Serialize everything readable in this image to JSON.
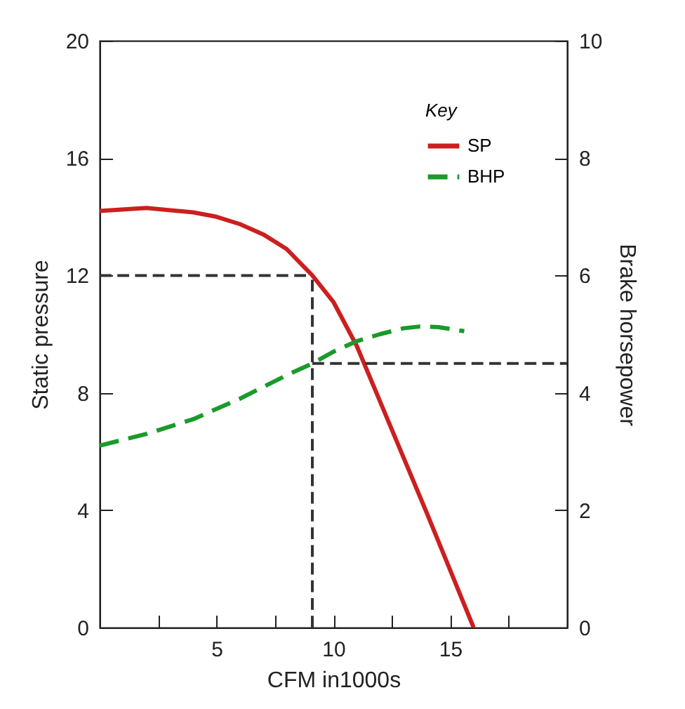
{
  "chart_data": {
    "type": "line",
    "xlabel": "CFM in1000s",
    "ylabel": "Static pressure",
    "y2label": "Brake horsepower",
    "legend_title": "Key",
    "legend": "top right",
    "xlim": [
      0,
      20
    ],
    "xticks": [
      {
        "value": 2.5,
        "label": null
      },
      5,
      {
        "value": 7.5,
        "label": null
      },
      10,
      {
        "value": 12.5,
        "label": null
      },
      15,
      {
        "value": 17.5,
        "label": null
      }
    ],
    "ylim": [
      0,
      20
    ],
    "yticks": [
      0,
      4,
      8,
      12,
      16,
      20
    ],
    "y2lim": [
      0,
      10
    ],
    "y2ticks": [
      0,
      2,
      4,
      6,
      8,
      10
    ],
    "series": [
      {
        "name": "SP",
        "color": "#cc1f1f",
        "line_style": "solid",
        "x": [
          0,
          2,
          4,
          5,
          6,
          7,
          8,
          9.1,
          10,
          11,
          12,
          13,
          14,
          15,
          16
        ],
        "values": [
          14.2,
          14.3,
          14.15,
          14.0,
          13.75,
          13.4,
          12.9,
          12,
          11.1,
          9.6,
          7.7,
          5.8,
          3.9,
          1.95,
          0
        ]
      },
      {
        "name": "BHP",
        "color": "#1a9a2a",
        "line_style": "dashed",
        "axis": "y2",
        "x": [
          0,
          2,
          4,
          6,
          8,
          9.1,
          10,
          11,
          12,
          13,
          13.7,
          14.5,
          15.6
        ],
        "values": [
          3.1,
          3.3,
          3.55,
          3.9,
          4.3,
          4.5,
          4.7,
          4.88,
          5.0,
          5.1,
          5.13,
          5.12,
          5.05
        ]
      },
      {
        "color": "#333333",
        "line_style": "dashed",
        "x": [
          0,
          9.1
        ],
        "values": [
          12,
          12
        ]
      },
      {
        "color": "#333333",
        "line_style": "dashed",
        "x": [
          9.1,
          9.1
        ],
        "values": [
          0,
          12
        ]
      },
      {
        "color": "#333333",
        "line_style": "dashed",
        "axis": "y2",
        "x": [
          9.1,
          20
        ],
        "values": [
          4.5,
          4.5
        ]
      }
    ]
  }
}
